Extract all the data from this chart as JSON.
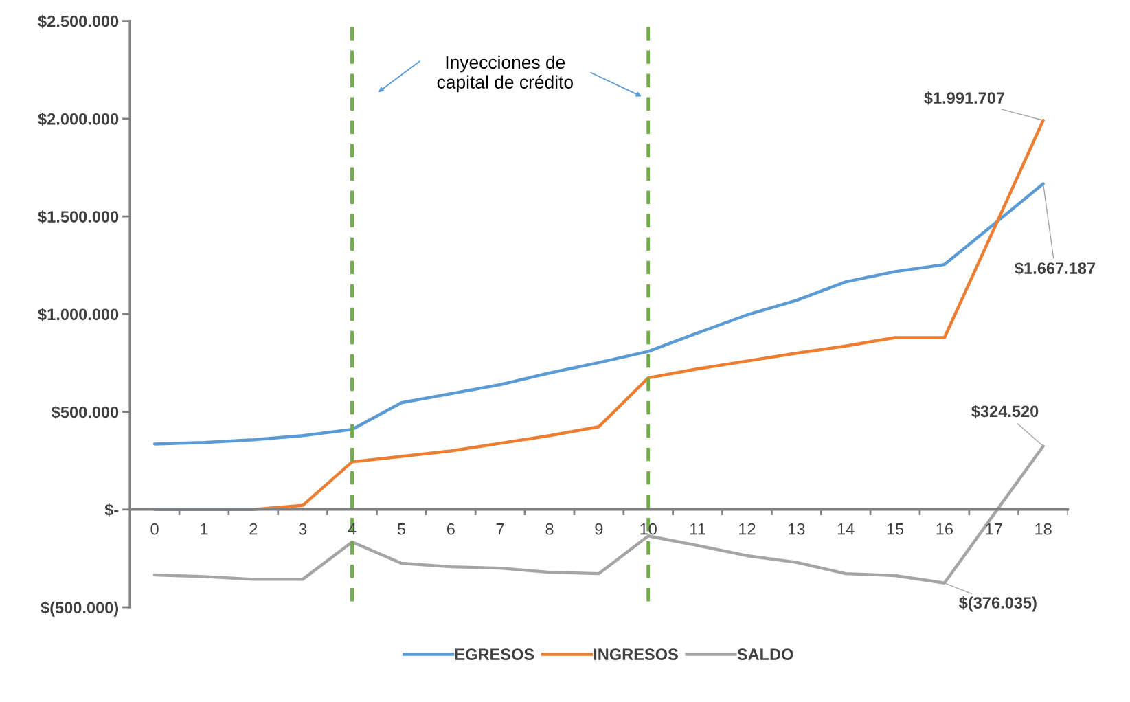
{
  "chart_data": {
    "type": "line",
    "categories": [
      "0",
      "1",
      "2",
      "3",
      "4",
      "5",
      "6",
      "7",
      "8",
      "9",
      "10",
      "11",
      "12",
      "13",
      "14",
      "15",
      "16",
      "17",
      "18"
    ],
    "series": [
      {
        "name": "EGRESOS",
        "color": "#5b9bd5",
        "values": [
          335000,
          343000,
          357000,
          378000,
          410000,
          547000,
          593000,
          639000,
          699000,
          752000,
          809000,
          904000,
          996000,
          1070000,
          1165000,
          1218000,
          1254000,
          1460000,
          1667187
        ],
        "value_labels": [
          null,
          null,
          null,
          null,
          null,
          null,
          null,
          null,
          null,
          null,
          null,
          null,
          null,
          null,
          null,
          null,
          null,
          null,
          "$1.667.187"
        ]
      },
      {
        "name": "INGRESOS",
        "color": "#ed7d31",
        "values": [
          0,
          0,
          0,
          21000,
          244000,
          272000,
          300000,
          339000,
          378000,
          424000,
          674000,
          720000,
          760000,
          800000,
          837000,
          880000,
          880000,
          1435000,
          1991707
        ],
        "value_labels": [
          null,
          null,
          null,
          null,
          null,
          null,
          null,
          null,
          null,
          null,
          null,
          null,
          null,
          null,
          null,
          null,
          null,
          null,
          "$1.991.707"
        ]
      },
      {
        "name": "SALDO",
        "color": "#a5a5a5",
        "values": [
          -335000,
          -343000,
          -357000,
          -357000,
          -166000,
          -275000,
          -293000,
          -300000,
          -321000,
          -328000,
          -135000,
          -184000,
          -236000,
          -270000,
          -328000,
          -338000,
          -376035,
          -25000,
          324520
        ],
        "value_labels": [
          null,
          null,
          null,
          null,
          null,
          null,
          null,
          null,
          null,
          null,
          null,
          null,
          null,
          null,
          null,
          null,
          "$(376.035)",
          null,
          "$324.520"
        ]
      }
    ],
    "ylim": [
      -500000,
      2500000
    ],
    "yticks": [
      {
        "value": -500000,
        "label": "$(500.000)"
      },
      {
        "value": 0,
        "label": "$-"
      },
      {
        "value": 500000,
        "label": "$500.000"
      },
      {
        "value": 1000000,
        "label": "$1.000.000"
      },
      {
        "value": 1500000,
        "label": "$1.500.000"
      },
      {
        "value": 2000000,
        "label": "$2.000.000"
      },
      {
        "value": 2500000,
        "label": "$2.500.000"
      }
    ],
    "ref_lines": [
      {
        "axis": "x",
        "value": "4",
        "color": "#70ad47",
        "line_style": "dashed"
      },
      {
        "axis": "x",
        "value": "10",
        "color": "#70ad47",
        "line_style": "dashed"
      }
    ],
    "annotations": [
      "Inyecciones de\ncapital de crédito"
    ],
    "grid": false,
    "legend": "bottom",
    "marker": "none",
    "line_style": "solid"
  }
}
